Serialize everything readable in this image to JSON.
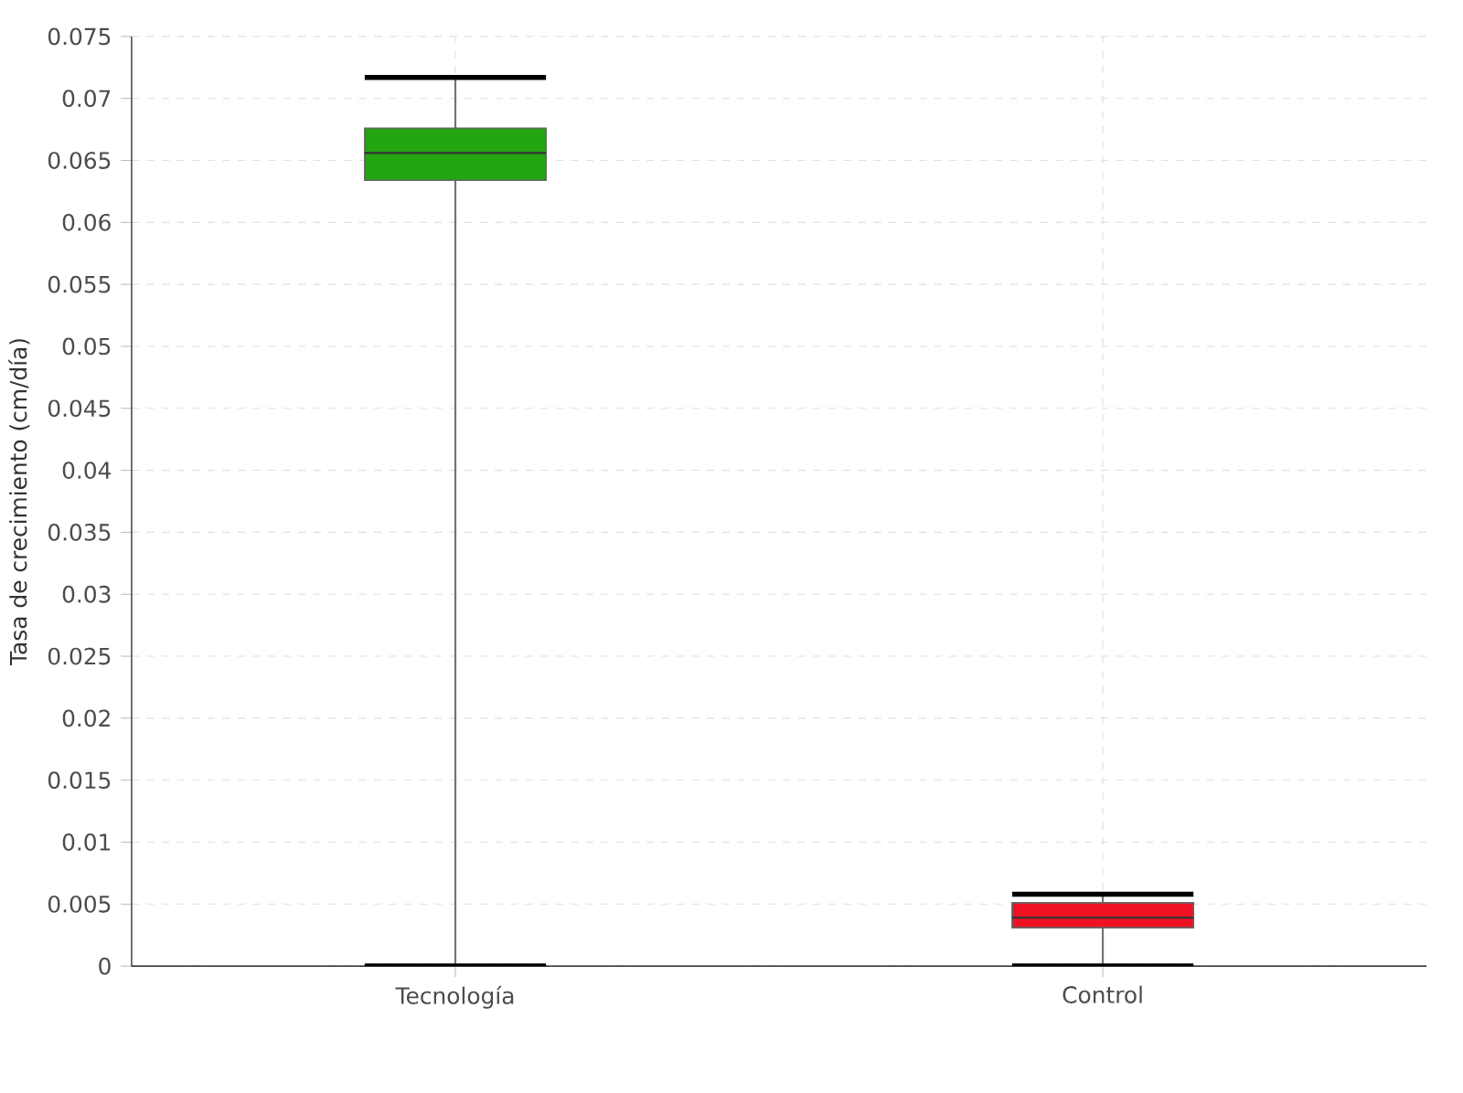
{
  "chart_data": {
    "type": "box",
    "ylabel": "Tasa de crecimiento (cm/día)",
    "categories": [
      "Tecnología",
      "Control"
    ],
    "colors": [
      "#22a511",
      "#ee1122"
    ],
    "boxes": [
      {
        "low": 0,
        "q1": 0.0634,
        "median": 0.0656,
        "q3": 0.0676,
        "high": 0.0717
      },
      {
        "low": 0,
        "q1": 0.0031,
        "median": 0.0039,
        "q3": 0.0051,
        "high": 0.0058
      }
    ],
    "ylim": [
      0,
      0.075
    ],
    "yticks": [
      0,
      0.005,
      0.01,
      0.015,
      0.02,
      0.025,
      0.03,
      0.035,
      0.04,
      0.045,
      0.05,
      0.055,
      0.06,
      0.065,
      0.07,
      0.075
    ],
    "grid": true
  }
}
